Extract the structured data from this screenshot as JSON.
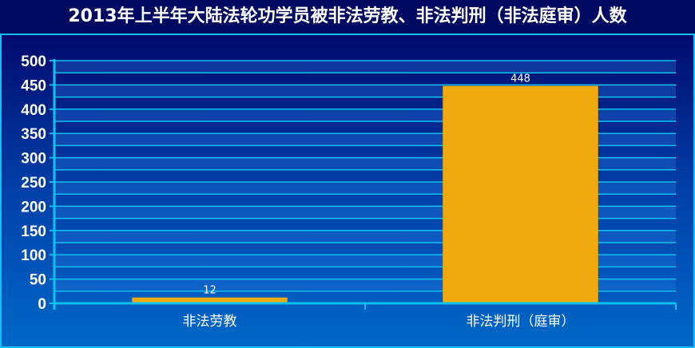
{
  "chart_data": {
    "type": "bar",
    "title": "2013年上半年大陆法轮功学员被非法劳教、非法判刑（非法庭审）人数",
    "categories": [
      "非法劳教",
      "非法判刑（庭审）"
    ],
    "values": [
      12,
      448
    ],
    "data_labels": [
      "12",
      "448"
    ],
    "xlabel": "",
    "ylabel": "",
    "ylim": [
      0,
      500
    ],
    "yticks": [
      "0",
      "50",
      "100",
      "150",
      "200",
      "250",
      "300",
      "350",
      "400",
      "450",
      "500"
    ],
    "grid": true,
    "legend": "none",
    "colors": {
      "bar": "#f0aa10",
      "axis": "#10c0f0",
      "title_bg": "#000a60",
      "text": "#ffffff"
    }
  }
}
